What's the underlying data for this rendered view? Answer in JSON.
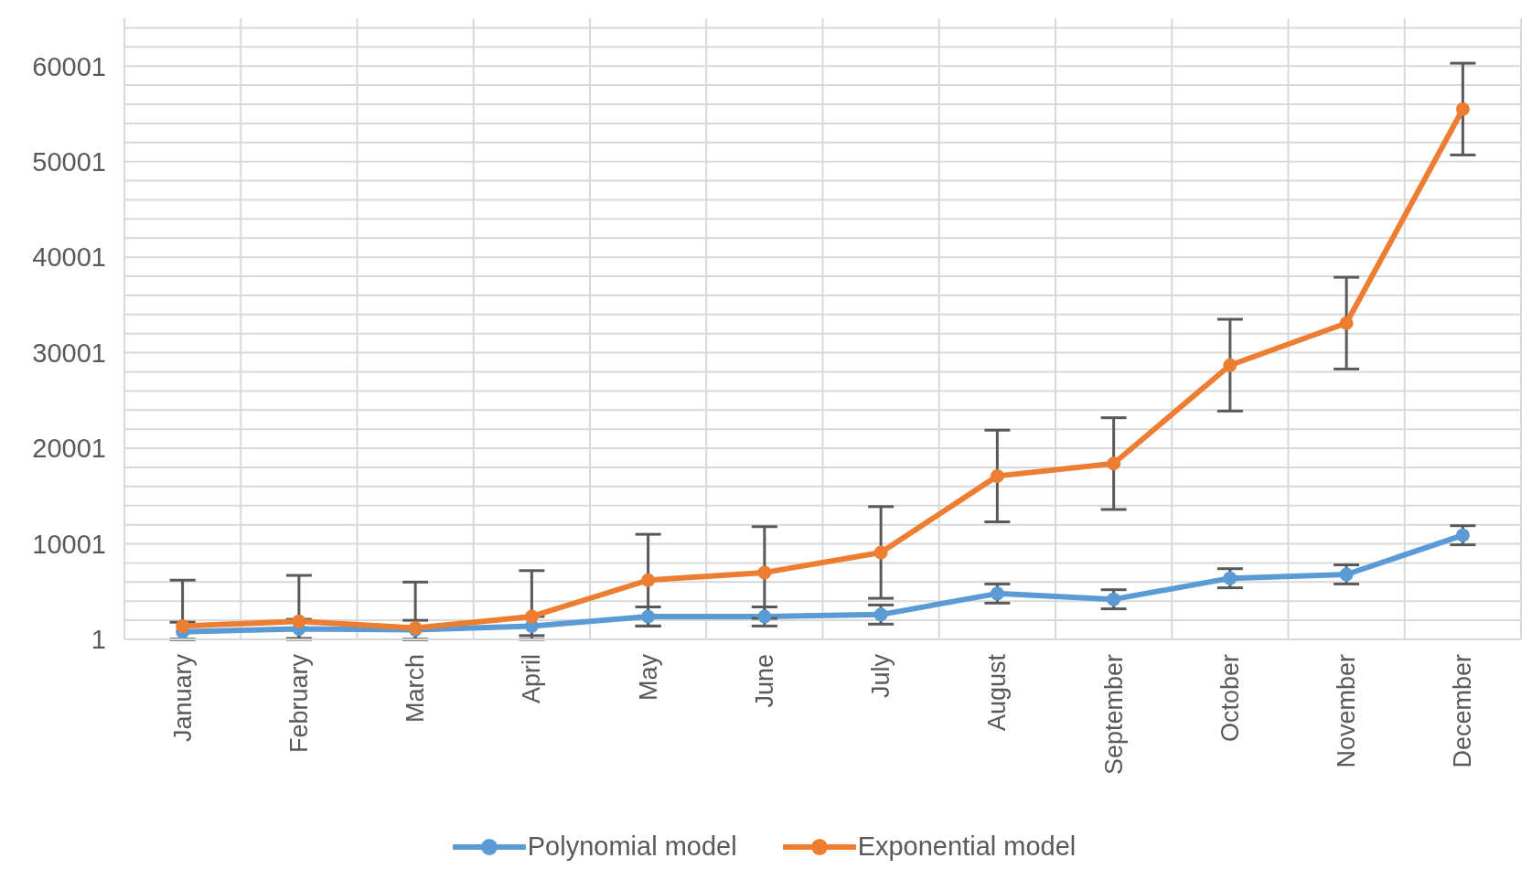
{
  "chart_data": {
    "type": "line",
    "categories": [
      "January",
      "February",
      "March",
      "April",
      "May",
      "June",
      "July",
      "August",
      "September",
      "October",
      "November",
      "December"
    ],
    "series": [
      {
        "name": "Polynomial model",
        "color": "#5b9bd5",
        "values": [
          800,
          1100,
          1000,
          1400,
          2400,
          2400,
          2600,
          4800,
          4200,
          6400,
          6800,
          10900
        ],
        "errors": [
          [
            1,
            1800
          ],
          1000,
          [
            1,
            2000
          ],
          1000,
          1000,
          1000,
          1000,
          1000,
          1000,
          1000,
          1000,
          1000
        ]
      },
      {
        "name": "Exponential model",
        "color": "#ed7d31",
        "values": [
          1400,
          1900,
          1200,
          2400,
          6200,
          7000,
          9100,
          17100,
          18400,
          28700,
          33100,
          55500
        ],
        "errors": [
          [
            1,
            6200
          ],
          [
            1,
            6700
          ],
          [
            1,
            6000
          ],
          [
            1,
            7200
          ],
          4800,
          4800,
          4800,
          4800,
          4800,
          4800,
          4800,
          4800
        ]
      }
    ],
    "ylim": [
      1,
      65001
    ],
    "yticks": [
      1,
      10001,
      20001,
      30001,
      40001,
      50001,
      60001
    ],
    "grid": true,
    "legend": "bottom",
    "marker": "circle",
    "line_style": "solid"
  }
}
